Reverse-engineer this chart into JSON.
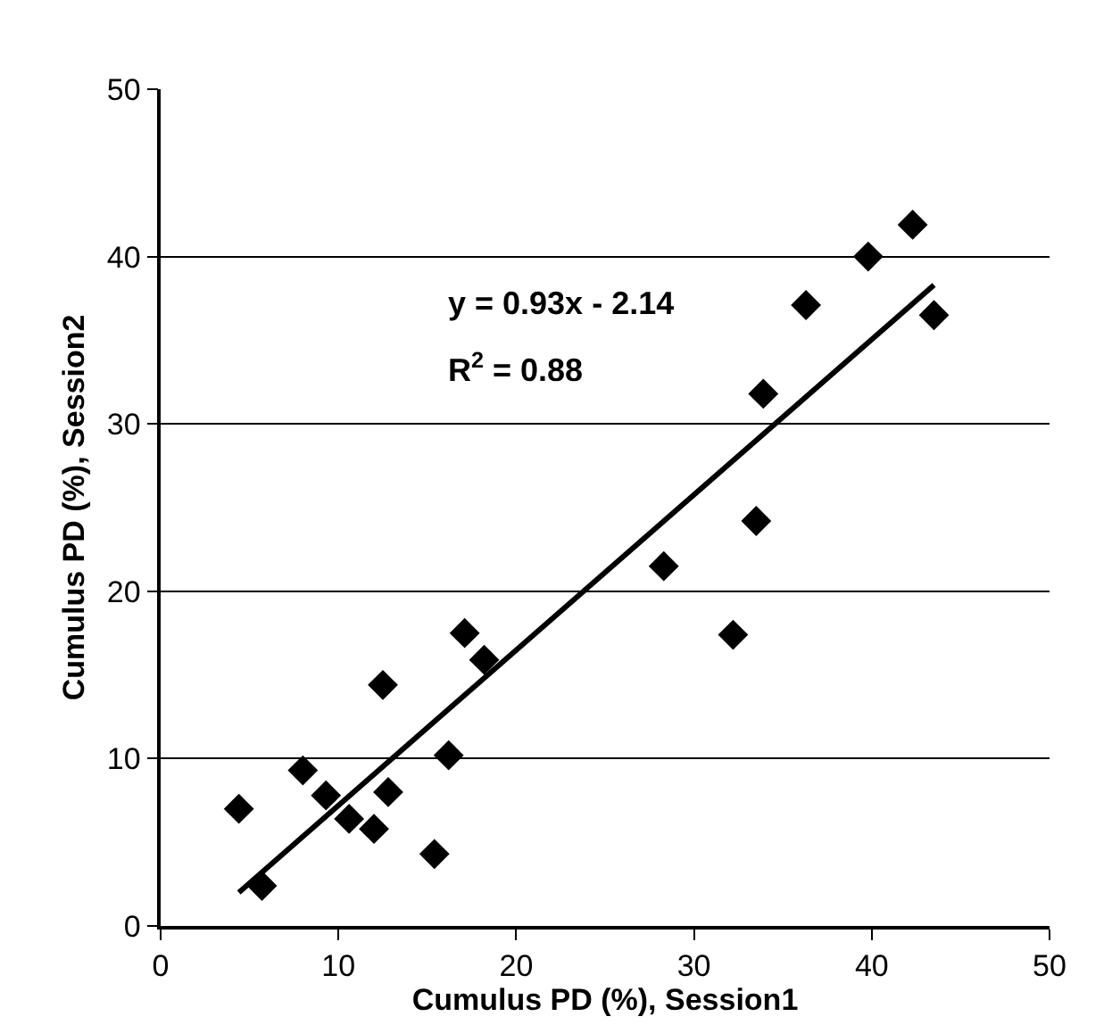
{
  "chart_data": {
    "type": "scatter",
    "xlabel": "Cumulus PD (%), Session1",
    "ylabel": "Cumulus PD (%), Session2",
    "annotations": [
      "y = 0.93x - 2.14",
      "R$^{2}$ = 0.88"
    ],
    "series": [
      {
        "color": "#000000",
        "marker": "diamond",
        "x": [
          4.4,
          5.7,
          8.0,
          9.3,
          10.6,
          12.0,
          12.5,
          12.8,
          15.4,
          16.2,
          17.1,
          18.2,
          28.3,
          32.2,
          33.5,
          33.9,
          36.3,
          39.8,
          42.3,
          43.5
        ],
        "values": [
          7.0,
          2.4,
          9.3,
          7.8,
          6.4,
          5.8,
          14.4,
          8.0,
          4.3,
          10.2,
          17.5,
          15.9,
          21.5,
          17.4,
          24.2,
          31.8,
          37.1,
          40.0,
          41.9,
          36.5
        ]
      },
      {
        "type": "line",
        "color": "#000000",
        "marker": "none",
        "x": [
          4.4,
          43.5
        ],
        "values": [
          2.0,
          38.3
        ]
      }
    ],
    "xlim": [
      0,
      50
    ],
    "ylim": [
      0,
      50
    ],
    "xticks": [
      0,
      10,
      20,
      30,
      40,
      50
    ],
    "yticks": [
      0,
      10,
      20,
      30,
      40,
      50
    ],
    "grid": "y"
  }
}
